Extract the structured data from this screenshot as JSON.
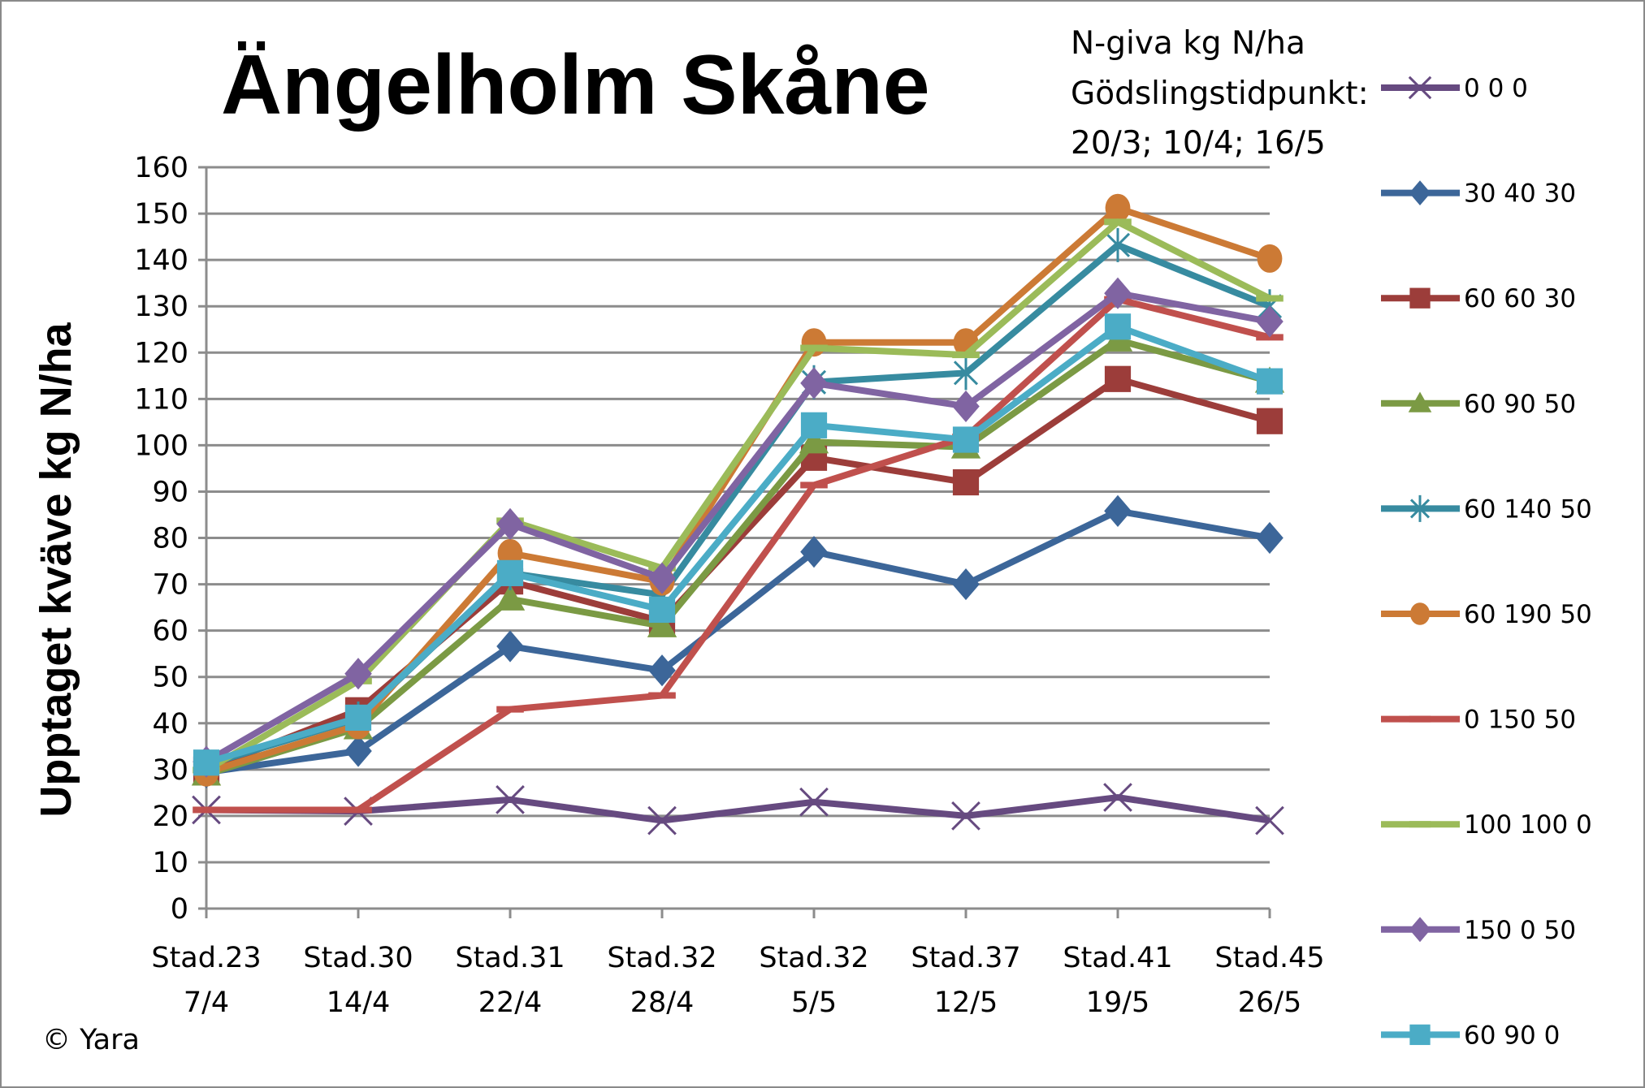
{
  "chart_data": {
    "type": "line",
    "title": "Ängelholm Skåne",
    "annotation": [
      "N-giva kg N/ha",
      "Gödslingstidpunkt:",
      "20/3; 10/4; 16/5"
    ],
    "copyright": "© Yara",
    "ylabel": "Upptaget kväve kg N/ha",
    "xlabel": "",
    "ylim": [
      0,
      160
    ],
    "yticks": [
      0,
      10,
      20,
      30,
      40,
      50,
      60,
      70,
      80,
      90,
      100,
      110,
      120,
      130,
      140,
      150,
      160
    ],
    "grid": true,
    "legend_position": "right",
    "categories": [
      [
        "Stad.23",
        "7/4"
      ],
      [
        "Stad.30",
        "14/4"
      ],
      [
        "Stad.31",
        "22/4"
      ],
      [
        "Stad.32",
        "28/4"
      ],
      [
        "Stad.32",
        "5/5"
      ],
      [
        "Stad.37",
        "12/5"
      ],
      [
        "Stad.41",
        "19/5"
      ],
      [
        "Stad.45",
        "26/5"
      ]
    ],
    "series": [
      {
        "name": "0 0 0",
        "color": "#664a80",
        "marker": "x",
        "values": [
          21.3,
          21,
          23.5,
          19,
          23,
          20,
          24,
          19
        ]
      },
      {
        "name": "30 40 30",
        "color": "#3c6699",
        "marker": "diamond",
        "values": [
          29.4,
          34,
          56.6,
          51.4,
          77,
          70,
          85.8,
          80
        ]
      },
      {
        "name": "60 60 30",
        "color": "#9c3d3a",
        "marker": "square",
        "values": [
          30,
          42.8,
          70.6,
          62,
          97.3,
          92,
          114.3,
          105.2
        ]
      },
      {
        "name": "60 90 50",
        "color": "#7b9a44",
        "marker": "triangle",
        "values": [
          29,
          39,
          66.8,
          61,
          100.7,
          99.6,
          122.7,
          113.8
        ]
      },
      {
        "name": "60 140 50",
        "color": "#378ba0",
        "marker": "star",
        "values": [
          31,
          41,
          72.4,
          67.7,
          113.6,
          115.6,
          143.2,
          130
        ]
      },
      {
        "name": "60 190 50",
        "color": "#cc7a35",
        "marker": "circle",
        "values": [
          29.4,
          39.6,
          76.7,
          70.6,
          122.2,
          122.2,
          151.2,
          140.3
        ]
      },
      {
        "name": "0 150 50",
        "color": "#c0504d",
        "marker": "dash",
        "values": [
          21.3,
          21.3,
          43,
          46,
          91.4,
          101.8,
          131.5,
          123.3
        ]
      },
      {
        "name": "100 100 0",
        "color": "#9bbb59",
        "marker": "dash",
        "values": [
          29.9,
          49.1,
          83.7,
          73.5,
          121,
          119.5,
          148.2,
          131.7
        ]
      },
      {
        "name": "150 0 50",
        "color": "#8064a2",
        "marker": "diamond",
        "values": [
          31.7,
          50.7,
          83,
          71.3,
          113.4,
          108.4,
          132.8,
          126.7
        ]
      },
      {
        "name": "60 90 0",
        "color": "#4bacc6",
        "marker": "square",
        "values": [
          31.5,
          41.2,
          72.4,
          64.5,
          104.3,
          101.2,
          125.6,
          113.8
        ]
      }
    ]
  }
}
